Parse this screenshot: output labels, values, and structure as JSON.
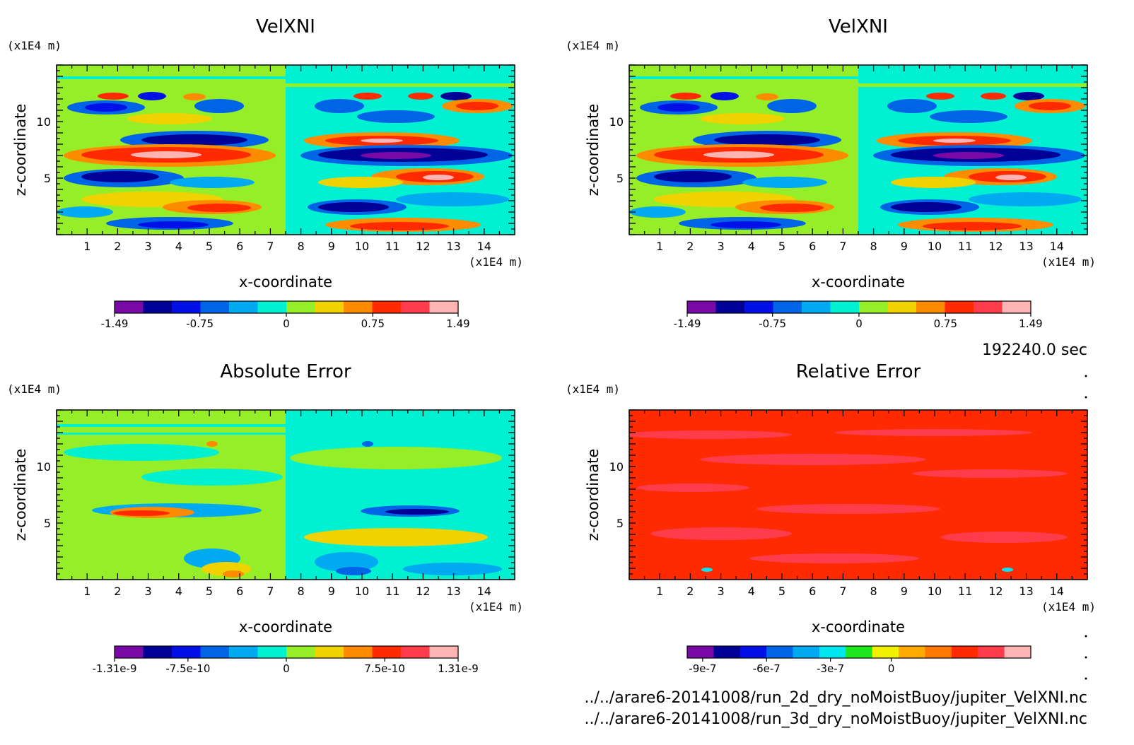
{
  "chart_data": [
    {
      "type": "heatmap",
      "title": "VelXNI",
      "xlabel": "x-coordinate",
      "ylabel": "z-coordinate",
      "x_unit": "(x1E4 m)",
      "z_unit": "(x1E4 m)",
      "xlim": [
        0,
        15
      ],
      "zlim": [
        0,
        15
      ],
      "xticks": [
        "1",
        "2",
        "3",
        "4",
        "5",
        "6",
        "7",
        "8",
        "9",
        "10",
        "11",
        "12",
        "13",
        "14"
      ],
      "zticks": [
        "5",
        "10"
      ],
      "colorbar": {
        "min": -1.49,
        "max": 1.49,
        "labels": [
          "-1.49",
          "-0.75",
          "0",
          "0.75",
          "1.49"
        ],
        "colors": [
          "#7a0aa8",
          "#000096",
          "#0010e6",
          "#0064e6",
          "#00aaf0",
          "#00f0d2",
          "#96ee28",
          "#f0d200",
          "#ff8c00",
          "#ff2a00",
          "#ff3c4c",
          "#ffb4b4"
        ]
      }
    },
    {
      "type": "heatmap",
      "title": "VelXNI",
      "xlabel": "x-coordinate",
      "ylabel": "z-coordinate",
      "x_unit": "(x1E4 m)",
      "z_unit": "(x1E4 m)",
      "xlim": [
        0,
        15
      ],
      "zlim": [
        0,
        15
      ],
      "xticks": [
        "1",
        "2",
        "3",
        "4",
        "5",
        "6",
        "7",
        "8",
        "9",
        "10",
        "11",
        "12",
        "13",
        "14"
      ],
      "zticks": [
        "5",
        "10"
      ],
      "colorbar": {
        "min": -1.49,
        "max": 1.49,
        "labels": [
          "-1.49",
          "-0.75",
          "0",
          "0.75",
          "1.49"
        ],
        "colors": [
          "#7a0aa8",
          "#000096",
          "#0010e6",
          "#0064e6",
          "#00aaf0",
          "#00f0d2",
          "#96ee28",
          "#f0d200",
          "#ff8c00",
          "#ff2a00",
          "#ff3c4c",
          "#ffb4b4"
        ]
      }
    },
    {
      "type": "heatmap",
      "title": "Absolute Error",
      "xlabel": "x-coordinate",
      "ylabel": "z-coordinate",
      "x_unit": "(x1E4 m)",
      "z_unit": "(x1E4 m)",
      "xlim": [
        0,
        15
      ],
      "zlim": [
        0,
        15
      ],
      "xticks": [
        "1",
        "2",
        "3",
        "4",
        "5",
        "6",
        "7",
        "8",
        "9",
        "10",
        "11",
        "12",
        "13",
        "14"
      ],
      "zticks": [
        "5",
        "10"
      ],
      "colorbar": {
        "min": -1.31e-09,
        "max": 1.31e-09,
        "labels": [
          "-1.31e-9",
          "-7.5e-10",
          "0",
          "7.5e-10",
          "1.31e-9"
        ],
        "colors": [
          "#7a0aa8",
          "#000096",
          "#0010e6",
          "#0064e6",
          "#00aaf0",
          "#00f0d2",
          "#96ee28",
          "#f0d200",
          "#ff8c00",
          "#ff2a00",
          "#ff3c4c",
          "#ffb4b4"
        ]
      }
    },
    {
      "type": "heatmap",
      "title": "Relative Error",
      "xlabel": "x-coordinate",
      "ylabel": "z-coordinate",
      "x_unit": "(x1E4 m)",
      "z_unit": "(x1E4 m)",
      "xlim": [
        0,
        15
      ],
      "zlim": [
        0,
        15
      ],
      "xticks": [
        "1",
        "2",
        "3",
        "4",
        "5",
        "6",
        "7",
        "8",
        "9",
        "10",
        "11",
        "12",
        "13",
        "14"
      ],
      "zticks": [
        "5",
        "10"
      ],
      "colorbar": {
        "labels": [
          "-9e-7",
          "-6e-7",
          "-3e-7",
          "0"
        ],
        "colors": [
          "#7a0aa8",
          "#000096",
          "#0010e6",
          "#0064e6",
          "#00aaf0",
          "#00e6f0",
          "#1ee61e",
          "#f0f000",
          "#ffaa00",
          "#ff7800",
          "#ff2a00",
          "#ff3c4c",
          "#ffb4b4"
        ]
      }
    }
  ],
  "time_label": "192240.0 sec",
  "file_paths": [
    "../../arare6-20141008/run_2d_dry_noMoistBuoy/jupiter_VelXNI.nc",
    "../../arare6-20141008/run_3d_dry_noMoistBuoy/jupiter_VelXNI.nc"
  ]
}
